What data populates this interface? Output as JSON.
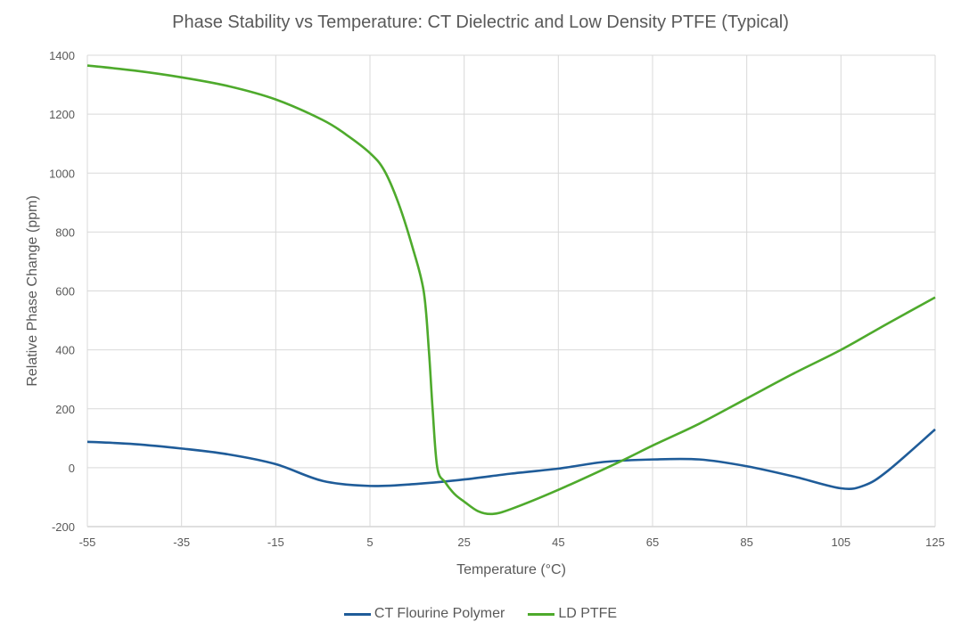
{
  "chart_data": {
    "type": "line",
    "title": "Phase Stability vs Temperature: CT Dielectric and Low Density PTFE (Typical)",
    "xlabel": "Temperature (°C)",
    "ylabel": "Relative Phase Change (ppm)",
    "xlim": [
      -55,
      125
    ],
    "ylim": [
      -200,
      1400
    ],
    "xticks": [
      -55,
      -35,
      -15,
      5,
      25,
      45,
      65,
      85,
      105,
      125
    ],
    "yticks": [
      -200,
      0,
      200,
      400,
      600,
      800,
      1000,
      1200,
      1400
    ],
    "grid": true,
    "legend": "bottom",
    "series": [
      {
        "name": "CT Flourine Polymer",
        "color": "#1f5c99",
        "x": [
          -55,
          -45,
          -35,
          -25,
          -15,
          -5,
          5,
          15,
          25,
          35,
          45,
          55,
          65,
          75,
          85,
          95,
          105,
          110,
          115,
          125
        ],
        "y": [
          88,
          80,
          65,
          45,
          12,
          -45,
          -62,
          -55,
          -40,
          -20,
          -3,
          20,
          28,
          28,
          5,
          -30,
          -70,
          -60,
          -10,
          130
        ]
      },
      {
        "name": "LD PTFE",
        "color": "#4eaa2c",
        "x": [
          -55,
          -45,
          -35,
          -25,
          -15,
          -5,
          0,
          5,
          8,
          11,
          14,
          16.4,
          17.5,
          18.3,
          19.3,
          21,
          23,
          25,
          28,
          31,
          35,
          45,
          58,
          65,
          75,
          85,
          95,
          105,
          115,
          125
        ],
        "y": [
          1365,
          1348,
          1325,
          1295,
          1250,
          1180,
          1130,
          1068,
          1010,
          900,
          750,
          600,
          400,
          200,
          0,
          -50,
          -90,
          -115,
          -148,
          -157,
          -140,
          -75,
          20,
          75,
          150,
          235,
          320,
          400,
          490,
          578
        ]
      }
    ]
  }
}
